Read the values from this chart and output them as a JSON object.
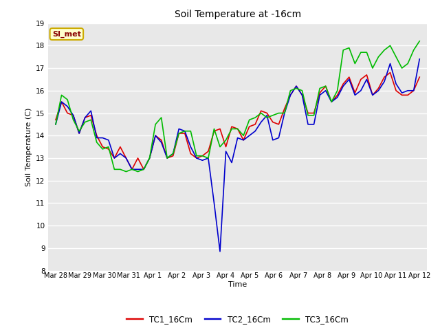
{
  "title": "Soil Temperature at -16cm",
  "xlabel": "Time",
  "ylabel": "Soil Temperature (C)",
  "ylim": [
    8.0,
    19.0
  ],
  "yticks": [
    8.0,
    9.0,
    10.0,
    11.0,
    12.0,
    13.0,
    14.0,
    15.0,
    16.0,
    17.0,
    18.0,
    19.0
  ],
  "fig_bg_color": "#ffffff",
  "plot_bg_color": "#e8e8e8",
  "grid_color": "#ffffff",
  "watermark_text": "SI_met",
  "watermark_bg": "#ffffcc",
  "watermark_border": "#ccaa00",
  "watermark_text_color": "#880000",
  "legend_entries": [
    "TC1_16Cm",
    "TC2_16Cm",
    "TC3_16Cm"
  ],
  "line_colors": [
    "#dd0000",
    "#0000cc",
    "#00bb00"
  ],
  "line_width": 1.2,
  "xtick_labels": [
    "Mar 28",
    "Mar 29",
    "Mar 30",
    "Mar 31",
    "Apr 1",
    "Apr 2",
    "Apr 3",
    "Apr 4",
    "Apr 5",
    "Apr 6",
    "Apr 7",
    "Apr 8",
    "Apr 9",
    "Apr 10",
    "Apr 11",
    "Apr 12"
  ],
  "TC1_16Cm": [
    14.7,
    15.5,
    15.0,
    14.9,
    14.1,
    14.8,
    14.9,
    14.0,
    13.5,
    13.4,
    13.0,
    13.5,
    13.0,
    12.5,
    13.0,
    12.5,
    13.0,
    14.0,
    13.8,
    13.0,
    13.1,
    14.1,
    14.1,
    13.2,
    13.0,
    13.1,
    13.3,
    14.2,
    14.3,
    13.5,
    14.4,
    14.3,
    13.8,
    14.4,
    14.5,
    15.1,
    15.0,
    14.6,
    14.5,
    15.2,
    15.8,
    16.2,
    15.8,
    15.0,
    15.0,
    15.9,
    16.2,
    15.5,
    15.8,
    16.3,
    16.6,
    15.9,
    16.5,
    16.7,
    15.8,
    16.1,
    16.6,
    16.8,
    16.0,
    15.8,
    15.8,
    16.0,
    16.6
  ],
  "TC2_16Cm": [
    14.5,
    15.5,
    15.3,
    14.9,
    14.1,
    14.8,
    15.1,
    13.9,
    13.9,
    13.8,
    13.0,
    13.2,
    13.0,
    12.5,
    12.5,
    12.5,
    13.0,
    14.0,
    13.7,
    13.0,
    13.2,
    14.3,
    14.2,
    13.5,
    13.0,
    12.9,
    13.0,
    11.0,
    8.85,
    13.3,
    12.8,
    13.9,
    13.8,
    14.0,
    14.2,
    14.6,
    14.9,
    13.8,
    13.9,
    15.0,
    15.8,
    16.2,
    15.8,
    14.5,
    14.5,
    15.8,
    16.0,
    15.5,
    15.7,
    16.2,
    16.5,
    15.8,
    16.0,
    16.5,
    15.8,
    16.0,
    16.4,
    17.2,
    16.3,
    15.9,
    16.0,
    16.0,
    17.4
  ],
  "TC3_16Cm": [
    14.5,
    15.8,
    15.6,
    14.7,
    14.2,
    14.6,
    14.7,
    13.7,
    13.4,
    13.5,
    12.5,
    12.5,
    12.4,
    12.5,
    12.4,
    12.5,
    13.0,
    14.5,
    14.8,
    13.0,
    13.2,
    14.1,
    14.2,
    14.2,
    13.1,
    13.1,
    13.0,
    14.3,
    13.5,
    13.8,
    14.3,
    14.3,
    14.0,
    14.7,
    14.8,
    15.0,
    14.8,
    14.9,
    15.0,
    15.0,
    16.0,
    16.1,
    16.0,
    14.9,
    14.9,
    16.1,
    16.2,
    15.5,
    16.0,
    17.8,
    17.9,
    17.2,
    17.7,
    17.7,
    17.0,
    17.5,
    17.8,
    18.0,
    17.5,
    17.0,
    17.2,
    17.8,
    18.2
  ]
}
